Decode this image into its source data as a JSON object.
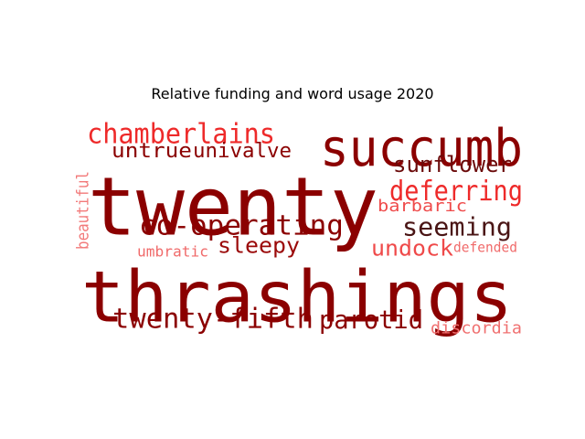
{
  "chart_data": {
    "type": "wordcloud",
    "title": "Relative funding and word usage 2020",
    "words": [
      {
        "text": "twenty",
        "color": "#8b0000"
      },
      {
        "text": "thrashings",
        "color": "#8b0000"
      },
      {
        "text": "succumb",
        "color": "#8b0000"
      },
      {
        "text": "chamberlains",
        "color": "#ee2a2a"
      },
      {
        "text": "untrue",
        "color": "#8b0000"
      },
      {
        "text": "univalve",
        "color": "#8b0000"
      },
      {
        "text": "sunflower",
        "color": "#6b0a0a"
      },
      {
        "text": "deferring",
        "color": "#ee2a2a"
      },
      {
        "text": "barbaric",
        "color": "#ef4a4a"
      },
      {
        "text": "co-operating",
        "color": "#8b0000"
      },
      {
        "text": "seeming",
        "color": "#4a1515"
      },
      {
        "text": "sleepy",
        "color": "#9b0a0a"
      },
      {
        "text": "undock",
        "color": "#ef4a4a"
      },
      {
        "text": "defended",
        "color": "#f06a6a"
      },
      {
        "text": "umbratic",
        "color": "#f06a6a"
      },
      {
        "text": "beautiful",
        "color": "#f27a7a"
      },
      {
        "text": "twenty-fifth",
        "color": "#8b0000"
      },
      {
        "text": "parotid",
        "color": "#8b0000"
      },
      {
        "text": "discordia",
        "color": "#f07070"
      }
    ]
  }
}
